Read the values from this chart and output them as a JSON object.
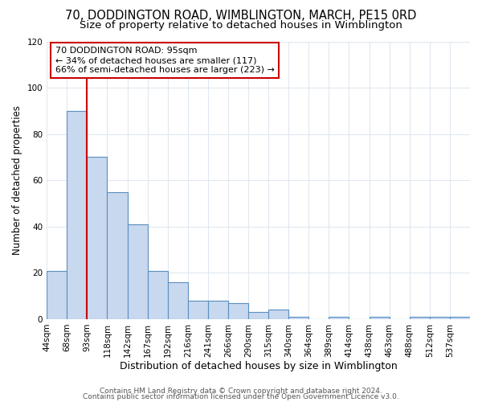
{
  "title1": "70, DODDINGTON ROAD, WIMBLINGTON, MARCH, PE15 0RD",
  "title2": "Size of property relative to detached houses in Wimblington",
  "xlabel": "Distribution of detached houses by size in Wimblington",
  "ylabel": "Number of detached properties",
  "bin_labels": [
    "44sqm",
    "68sqm",
    "93sqm",
    "118sqm",
    "142sqm",
    "167sqm",
    "192sqm",
    "216sqm",
    "241sqm",
    "266sqm",
    "290sqm",
    "315sqm",
    "340sqm",
    "364sqm",
    "389sqm",
    "414sqm",
    "438sqm",
    "463sqm",
    "488sqm",
    "512sqm",
    "537sqm"
  ],
  "bar_heights": [
    21,
    90,
    70,
    55,
    41,
    21,
    16,
    8,
    8,
    7,
    3,
    4,
    1,
    0,
    1,
    0,
    1,
    0,
    1,
    1,
    1
  ],
  "bar_color": "#c8d8ee",
  "bar_edge_color": "#5a8fc0",
  "vline_x": 2,
  "vline_color": "#cc0000",
  "annotation_line1": "70 DODDINGTON ROAD: 95sqm",
  "annotation_line2": "← 34% of detached houses are smaller (117)",
  "annotation_line3": "66% of semi-detached houses are larger (223) →",
  "annotation_box_color": "#ffffff",
  "annotation_box_edge_color": "#cc0000",
  "ylim": [
    0,
    120
  ],
  "yticks": [
    0,
    20,
    40,
    60,
    80,
    100,
    120
  ],
  "footnote1": "Contains HM Land Registry data © Crown copyright and database right 2024.",
  "footnote2": "Contains public sector information licensed under the Open Government Licence v3.0.",
  "background_color": "#ffffff",
  "plot_bg_color": "#ffffff",
  "grid_color": "#e0e8f0",
  "title1_fontsize": 10.5,
  "title2_fontsize": 9.5,
  "xlabel_fontsize": 9,
  "ylabel_fontsize": 8.5,
  "tick_fontsize": 7.5,
  "annotation_fontsize": 8,
  "footnote_fontsize": 6.5
}
